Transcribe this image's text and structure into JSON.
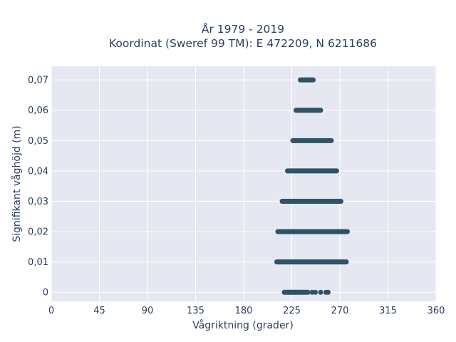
{
  "chart_data": {
    "type": "scatter",
    "title_line1": "År 1979 - 2019",
    "title_line2": "Koordinat (Sweref 99 TM): E 472209, N 6211686",
    "xlabel": "Vågriktning (grader)",
    "ylabel": "Signifikant våghöjd (m)",
    "xlim": [
      0,
      360
    ],
    "ylim": [
      -0.003,
      0.0745
    ],
    "x_ticks": [
      0,
      45,
      90,
      135,
      180,
      225,
      270,
      315,
      360
    ],
    "x_tick_labels": [
      "0",
      "45",
      "90",
      "135",
      "180",
      "225",
      "270",
      "315",
      "360"
    ],
    "y_ticks": [
      0,
      0.01,
      0.02,
      0.03,
      0.04,
      0.05,
      0.06,
      0.07
    ],
    "y_tick_labels": [
      "0",
      "0,01",
      "0,02",
      "0,03",
      "0,04",
      "0,05",
      "0,06",
      "0,07"
    ],
    "grid": true,
    "marker_color": "#2e5266",
    "plot_bg": "#e5e8f1",
    "series": [
      {
        "segments": [
          {
            "y": 0.07,
            "x_range": [
              233,
              245
            ]
          },
          {
            "y": 0.06,
            "x_range": [
              229,
              252
            ]
          },
          {
            "y": 0.05,
            "x_range": [
              226,
              262
            ]
          },
          {
            "y": 0.04,
            "x_range": [
              221,
              267
            ]
          },
          {
            "y": 0.03,
            "x_range": [
              216,
              271
            ]
          },
          {
            "y": 0.02,
            "x_range": [
              212,
              277
            ]
          },
          {
            "y": 0.01,
            "x_range": [
              211,
              276
            ]
          },
          {
            "y": 0,
            "x_range": [
              218,
              240
            ]
          }
        ],
        "extra_points": [
          {
            "x": 244,
            "y": 0
          },
          {
            "x": 247,
            "y": 0
          },
          {
            "x": 252,
            "y": 0
          },
          {
            "x": 257,
            "y": 0
          },
          {
            "x": 259,
            "y": 0
          }
        ]
      }
    ]
  }
}
